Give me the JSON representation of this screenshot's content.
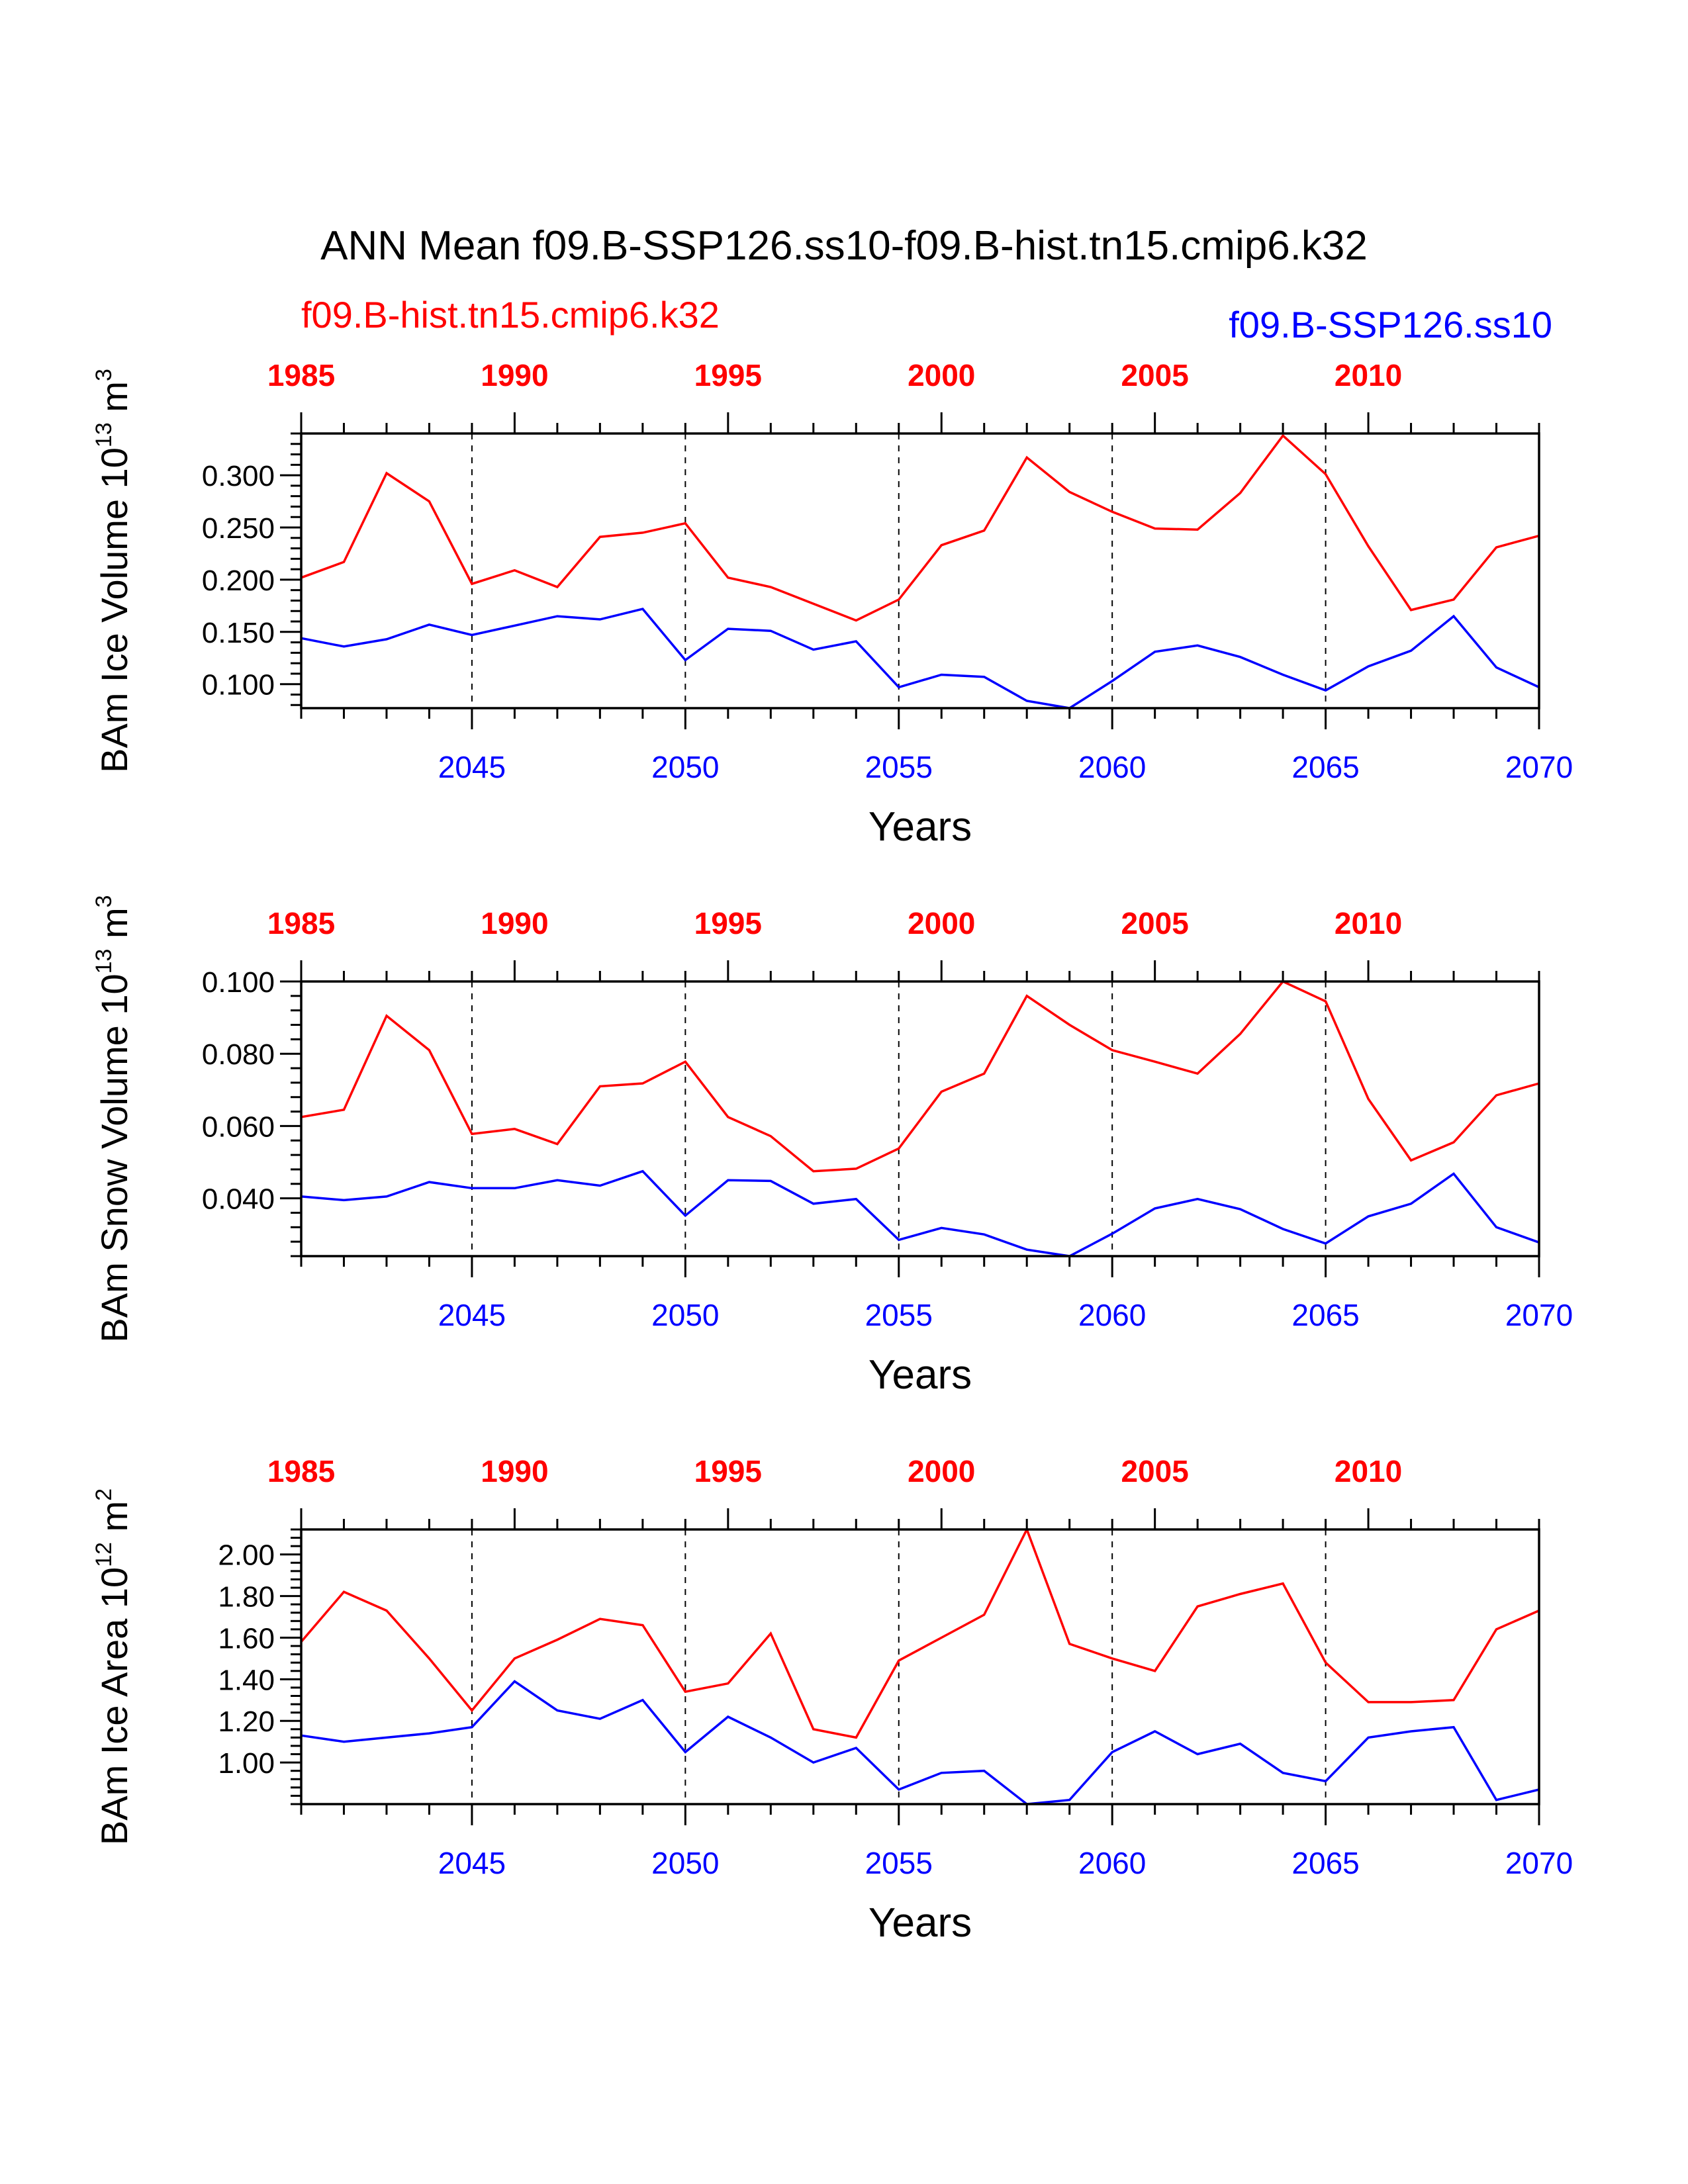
{
  "figure": {
    "title": "ANN Mean f09.B-SSP126.ss10-f09.B-hist.tn15.cmip6.k32",
    "legend_red": "f09.B-hist.tn15.cmip6.k32",
    "legend_blue": "f09.B-SSP126.ss10",
    "series_colors": {
      "hist": "#ff0000",
      "ssp": "#0000ff"
    }
  },
  "chart_data": [
    {
      "type": "line",
      "ylabel_main": "BAm Ice Volume 10",
      "ylabel_exp": "13",
      "ylabel_unit": " m",
      "ylabel_unit_exp": "3",
      "xlabel": "Years",
      "ylim": [
        0.077,
        0.34
      ],
      "yticks": [
        0.1,
        0.15,
        0.2,
        0.25,
        0.3
      ],
      "ytick_labels": [
        "0.100",
        "0.150",
        "0.200",
        "0.250",
        "0.300"
      ],
      "ytick_minor": 0.01,
      "x_bottom": {
        "range": [
          2041,
          2070
        ],
        "ticks": [
          2045,
          2050,
          2055,
          2060,
          2065,
          2070
        ],
        "labels": [
          "2045",
          "2050",
          "2055",
          "2060",
          "2065",
          "2070"
        ]
      },
      "x_top": {
        "range": [
          1985,
          2014
        ],
        "ticks": [
          1985,
          1990,
          1995,
          2000,
          2005,
          2010
        ],
        "labels": [
          "1985",
          "1990",
          "1995",
          "2000",
          "2005",
          "2010"
        ]
      },
      "series": [
        {
          "name": "f09.B-hist.tn15.cmip6.k32",
          "axis": "top",
          "x_start": 1985,
          "values": [
            0.202,
            0.217,
            0.302,
            0.275,
            0.196,
            0.209,
            0.193,
            0.241,
            0.245,
            0.254,
            0.202,
            0.193,
            0.177,
            0.161,
            0.181,
            0.233,
            0.247,
            0.317,
            0.284,
            0.265,
            0.249,
            0.248,
            0.283,
            0.338,
            0.301,
            0.232,
            0.171,
            0.181,
            0.231,
            0.242
          ]
        },
        {
          "name": "f09.B-SSP126.ss10",
          "axis": "bottom",
          "x_start": 2041,
          "values": [
            0.144,
            0.136,
            0.143,
            0.157,
            0.147,
            0.156,
            0.165,
            0.162,
            0.172,
            0.123,
            0.153,
            0.151,
            0.133,
            0.141,
            0.097,
            0.109,
            0.107,
            0.084,
            0.077,
            0.103,
            0.131,
            0.137,
            0.126,
            0.109,
            0.094,
            0.117,
            0.132,
            0.165,
            0.116,
            0.097
          ]
        }
      ]
    },
    {
      "type": "line",
      "ylabel_main": "BAm Snow Volume 10",
      "ylabel_exp": "13",
      "ylabel_unit": " m",
      "ylabel_unit_exp": "3",
      "xlabel": "Years",
      "ylim": [
        0.024,
        0.1
      ],
      "yticks": [
        0.04,
        0.06,
        0.08,
        0.1
      ],
      "ytick_labels": [
        "0.040",
        "0.060",
        "0.080",
        "0.100"
      ],
      "ytick_minor": 0.004,
      "x_bottom": {
        "range": [
          2041,
          2070
        ],
        "ticks": [
          2045,
          2050,
          2055,
          2060,
          2065,
          2070
        ],
        "labels": [
          "2045",
          "2050",
          "2055",
          "2060",
          "2065",
          "2070"
        ]
      },
      "x_top": {
        "range": [
          1985,
          2014
        ],
        "ticks": [
          1985,
          1990,
          1995,
          2000,
          2005,
          2010
        ],
        "labels": [
          "1985",
          "1990",
          "1995",
          "2000",
          "2005",
          "2010"
        ]
      },
      "series": [
        {
          "name": "f09.B-hist.tn15.cmip6.k32",
          "axis": "top",
          "x_start": 1985,
          "values": [
            0.0625,
            0.0645,
            0.0905,
            0.081,
            0.0578,
            0.0592,
            0.055,
            0.071,
            0.0718,
            0.0778,
            0.0625,
            0.0572,
            0.0475,
            0.0482,
            0.0538,
            0.0695,
            0.0745,
            0.096,
            0.088,
            0.081,
            0.0778,
            0.0745,
            0.0855,
            0.1,
            0.0945,
            0.0675,
            0.0505,
            0.0555,
            0.0685,
            0.0718
          ]
        },
        {
          "name": "f09.B-SSP126.ss10",
          "axis": "bottom",
          "x_start": 2041,
          "values": [
            0.0405,
            0.0395,
            0.0405,
            0.0445,
            0.0428,
            0.0428,
            0.045,
            0.0435,
            0.0475,
            0.0352,
            0.045,
            0.0448,
            0.0385,
            0.0398,
            0.0285,
            0.0318,
            0.03,
            0.0258,
            0.024,
            0.0302,
            0.0372,
            0.0398,
            0.037,
            0.0315,
            0.0275,
            0.035,
            0.0385,
            0.0468,
            0.032,
            0.0278
          ]
        }
      ]
    },
    {
      "type": "line",
      "ylabel_main": "BAm Ice Area 10",
      "ylabel_exp": "12",
      "ylabel_unit": " m",
      "ylabel_unit_exp": "2",
      "xlabel": "Years",
      "ylim": [
        0.8,
        2.12
      ],
      "yticks": [
        1.0,
        1.2,
        1.4,
        1.6,
        1.8,
        2.0
      ],
      "ytick_labels": [
        "1.00",
        "1.20",
        "1.40",
        "1.60",
        "1.80",
        "2.00"
      ],
      "ytick_minor": 0.04,
      "x_bottom": {
        "range": [
          2041,
          2070
        ],
        "ticks": [
          2045,
          2050,
          2055,
          2060,
          2065,
          2070
        ],
        "labels": [
          "2045",
          "2050",
          "2055",
          "2060",
          "2065",
          "2070"
        ]
      },
      "x_top": {
        "range": [
          1985,
          2014
        ],
        "ticks": [
          1985,
          1990,
          1995,
          2000,
          2005,
          2010
        ],
        "labels": [
          "1985",
          "1990",
          "1995",
          "2000",
          "2005",
          "2010"
        ]
      },
      "series": [
        {
          "name": "f09.B-hist.tn15.cmip6.k32",
          "axis": "top",
          "x_start": 1985,
          "values": [
            1.58,
            1.82,
            1.73,
            1.5,
            1.25,
            1.5,
            1.59,
            1.69,
            1.66,
            1.34,
            1.38,
            1.62,
            1.16,
            1.12,
            1.49,
            1.6,
            1.71,
            2.12,
            1.57,
            1.5,
            1.44,
            1.75,
            1.81,
            1.86,
            1.48,
            1.29,
            1.29,
            1.3,
            1.64,
            1.73
          ]
        },
        {
          "name": "f09.B-SSP126.ss10",
          "axis": "bottom",
          "x_start": 2041,
          "values": [
            1.13,
            1.1,
            1.12,
            1.14,
            1.17,
            1.39,
            1.25,
            1.21,
            1.3,
            1.05,
            1.22,
            1.12,
            1.0,
            1.07,
            0.87,
            0.95,
            0.96,
            0.8,
            0.82,
            1.05,
            1.15,
            1.04,
            1.09,
            0.95,
            0.91,
            1.12,
            1.15,
            1.17,
            0.82,
            0.87
          ]
        }
      ]
    }
  ]
}
